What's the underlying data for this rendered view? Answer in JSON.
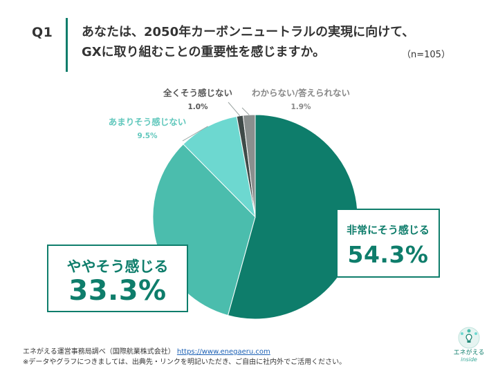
{
  "header": {
    "q_label": "Q1",
    "question_line1": "あなたは、2050年カーボンニュートラルの実現に向けて、",
    "question_line2": "GXに取り組むことの重要性を感じますか。",
    "sample": "（n=105）"
  },
  "chart_data": {
    "type": "pie",
    "title": "",
    "start_angle_deg": 0,
    "direction": "clockwise",
    "slices": [
      {
        "label": "非常にそう感じる",
        "value": 54.3,
        "display": "54.3%",
        "color": "#0e7d6b"
      },
      {
        "label": "ややそう感じる",
        "value": 33.3,
        "display": "33.3%",
        "color": "#4bbdad"
      },
      {
        "label": "あまりそう感じない",
        "value": 9.5,
        "display": "9.5%",
        "color": "#6dd8d0"
      },
      {
        "label": "全くそう感じない",
        "value": 1.0,
        "display": "1.0%",
        "color": "#3f4a48"
      },
      {
        "label": "わからない/答えられない",
        "value": 1.9,
        "display": "1.9%",
        "color": "#8a8f8e"
      }
    ],
    "legend": "none"
  },
  "footer": {
    "source_text": "エネがえる運営事務局調べ（国際航業株式会社）",
    "source_url": "https://www.enegaeru.com",
    "note": "※データやグラフにつきましては、出典先・リンクを明記いただき、ご自由に社内外でご活用ください。"
  },
  "logo": {
    "name": "エネがえる",
    "sub": "inside",
    "icon": "bulb-icon",
    "accent": "#0e7d6b"
  }
}
